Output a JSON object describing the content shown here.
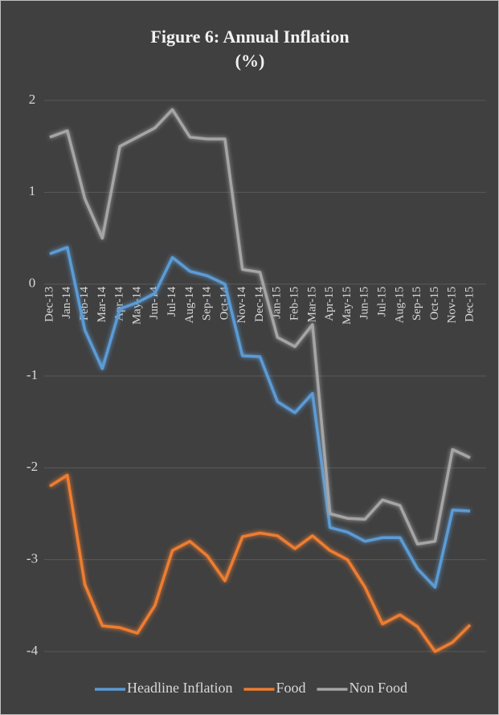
{
  "chart_data": {
    "type": "line",
    "title": "Figure 6: Annual Inflation",
    "subtitle": "(%)",
    "categories": [
      "Dec-13",
      "Jan-14",
      "Feb-14",
      "Mar-14",
      "Apr-14",
      "May-14",
      "Jun-14",
      "Jul-14",
      "Aug-14",
      "Sep-14",
      "Oct-14",
      "Nov-14",
      "Dec-14",
      "Jan-15",
      "Feb-15",
      "Mar-15",
      "Apr-15",
      "May-15",
      "Jun-15",
      "Jul-15",
      "Aug-15",
      "Sep-15",
      "Oct-15",
      "Nov-15",
      "Dec-15"
    ],
    "series": [
      {
        "name": "Headline Inflation",
        "color": "#5b9bd5",
        "values": [
          0.33,
          0.4,
          -0.5,
          -0.92,
          -0.27,
          -0.2,
          -0.1,
          0.29,
          0.14,
          0.09,
          0.0,
          -0.78,
          -0.79,
          -1.28,
          -1.4,
          -1.19,
          -2.65,
          -2.7,
          -2.8,
          -2.76,
          -2.76,
          -3.1,
          -3.3,
          -2.46,
          -2.47
        ]
      },
      {
        "name": "Food",
        "color": "#ed7d31",
        "values": [
          -2.2,
          -2.08,
          -3.27,
          -3.72,
          -3.74,
          -3.8,
          -3.5,
          -2.9,
          -2.8,
          -2.96,
          -3.23,
          -2.75,
          -2.71,
          -2.74,
          -2.88,
          -2.74,
          -2.9,
          -3.0,
          -3.3,
          -3.7,
          -3.6,
          -3.73,
          -4.0,
          -3.9,
          -3.71
        ]
      },
      {
        "name": "Non Food",
        "color": "#a5a5a5",
        "values": [
          1.6,
          1.67,
          0.93,
          0.5,
          1.5,
          1.6,
          1.7,
          1.9,
          1.6,
          1.58,
          1.58,
          0.16,
          0.13,
          -0.58,
          -0.68,
          -0.44,
          -2.5,
          -2.55,
          -2.56,
          -2.35,
          -2.41,
          -2.83,
          -2.8,
          -1.8,
          -1.89
        ]
      }
    ],
    "ylim": [
      -4,
      2
    ],
    "yticks": [
      -4,
      -3,
      -2,
      -1,
      0,
      1,
      2
    ],
    "grid": true,
    "legend": "bottom"
  }
}
